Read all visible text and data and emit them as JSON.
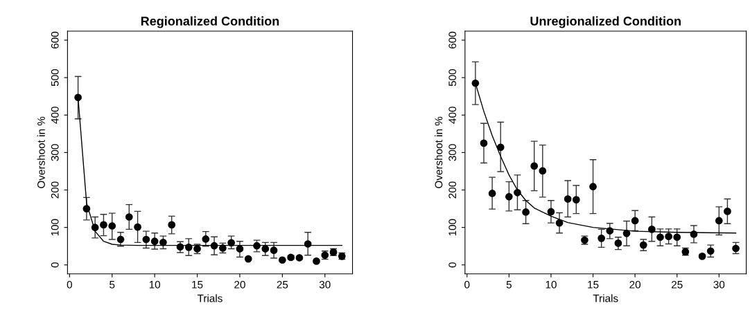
{
  "chart_data": [
    {
      "type": "scatter",
      "title": "Regionalized Condition",
      "xlabel": "Trials",
      "ylabel": "Overshoot in %",
      "xlim": [
        -0.24,
        33.24
      ],
      "ylim": [
        -24,
        624
      ],
      "xticks": [
        0,
        5,
        10,
        15,
        20,
        25,
        30
      ],
      "yticks": [
        0,
        100,
        200,
        300,
        400,
        500,
        600
      ],
      "grid": false,
      "marker": "circle",
      "series": [
        {
          "color": "#000000",
          "x": [
            1,
            2,
            3,
            4,
            5,
            6,
            7,
            8,
            9,
            10,
            11,
            12,
            13,
            14,
            15,
            16,
            17,
            18,
            19,
            20,
            21,
            22,
            23,
            24,
            25,
            26,
            27,
            28,
            29,
            30,
            31,
            32
          ],
          "values": [
            447,
            150,
            100,
            107,
            104,
            68,
            128,
            101,
            68,
            63,
            60,
            107,
            48,
            47,
            43,
            69,
            51,
            45,
            59,
            43,
            16,
            51,
            43,
            39,
            13,
            20,
            19,
            56,
            10,
            26,
            34,
            23
          ],
          "errors": [
            [
              390,
              503
            ],
            [
              120,
              180
            ],
            [
              72,
              128
            ],
            [
              78,
              135
            ],
            [
              68,
              138
            ],
            [
              50,
              87
            ],
            [
              95,
              161
            ],
            [
              60,
              143
            ],
            [
              45,
              90
            ],
            [
              42,
              85
            ],
            [
              43,
              77
            ],
            [
              83,
              130
            ],
            [
              33,
              62
            ],
            [
              25,
              70
            ],
            [
              30,
              55
            ],
            [
              50,
              89
            ],
            [
              27,
              75
            ],
            [
              32,
              58
            ],
            [
              43,
              77
            ],
            [
              21,
              63
            ],
            null,
            [
              35,
              66
            ],
            [
              25,
              60
            ],
            [
              18,
              60
            ],
            null,
            [
              15,
              25
            ],
            null,
            [
              26,
              87
            ],
            null,
            [
              15,
              37
            ],
            [
              25,
              43
            ],
            [
              15,
              32
            ]
          ]
        },
        {
          "type": "line",
          "color": "#000000",
          "marker": "none",
          "line_style": "solid",
          "x": [
            1,
            2,
            3,
            4,
            5,
            6,
            8,
            12,
            20,
            32
          ],
          "values": [
            447,
            165,
            90,
            63,
            55,
            53,
            52,
            52,
            52,
            52
          ]
        }
      ]
    },
    {
      "type": "scatter",
      "title": "Unregionalized Condition",
      "xlabel": "Trials",
      "ylabel": "Overshoot in %",
      "xlim": [
        -0.24,
        33.24
      ],
      "ylim": [
        -24,
        624
      ],
      "xticks": [
        0,
        5,
        10,
        15,
        20,
        25,
        30
      ],
      "yticks": [
        0,
        100,
        200,
        300,
        400,
        500,
        600
      ],
      "grid": false,
      "marker": "circle",
      "series": [
        {
          "color": "#000000",
          "x": [
            1,
            2,
            3,
            4,
            5,
            6,
            7,
            8,
            9,
            10,
            11,
            12,
            13,
            14,
            15,
            16,
            17,
            18,
            19,
            20,
            21,
            22,
            23,
            24,
            25,
            26,
            27,
            28,
            29,
            30,
            31,
            32
          ],
          "values": [
            485,
            325,
            191,
            314,
            182,
            193,
            141,
            264,
            251,
            142,
            112,
            176,
            174,
            66,
            209,
            71,
            91,
            58,
            84,
            118,
            53,
            95,
            74,
            76,
            74,
            35,
            82,
            23,
            37,
            118,
            143,
            44
          ],
          "errors": [
            [
              428,
              542
            ],
            [
              272,
              378
            ],
            [
              149,
              234
            ],
            [
              249,
              381
            ],
            [
              144,
              222
            ],
            [
              147,
              240
            ],
            [
              110,
              172
            ],
            [
              198,
              330
            ],
            [
              181,
              320
            ],
            [
              112,
              172
            ],
            [
              85,
              139
            ],
            [
              128,
              225
            ],
            [
              137,
              212
            ],
            [
              55,
              77
            ],
            [
              137,
              281
            ],
            [
              47,
              95
            ],
            [
              70,
              111
            ],
            [
              41,
              74
            ],
            [
              51,
              117
            ],
            [
              91,
              145
            ],
            [
              38,
              68
            ],
            [
              63,
              128
            ],
            [
              51,
              96
            ],
            [
              56,
              96
            ],
            [
              51,
              96
            ],
            [
              26,
              45
            ],
            [
              59,
              105
            ],
            [
              19,
              27
            ],
            [
              21,
              53
            ],
            [
              80,
              155
            ],
            [
              110,
              176
            ],
            [
              30,
              60
            ]
          ]
        },
        {
          "type": "line",
          "color": "#000000",
          "marker": "none",
          "line_style": "solid",
          "x": [
            1,
            2,
            3,
            4,
            5,
            6,
            7,
            8,
            10,
            12,
            15,
            20,
            25,
            32
          ],
          "values": [
            485,
            410,
            345,
            290,
            240,
            200,
            172,
            152,
            130,
            113,
            100,
            90,
            87,
            85
          ]
        }
      ]
    }
  ]
}
